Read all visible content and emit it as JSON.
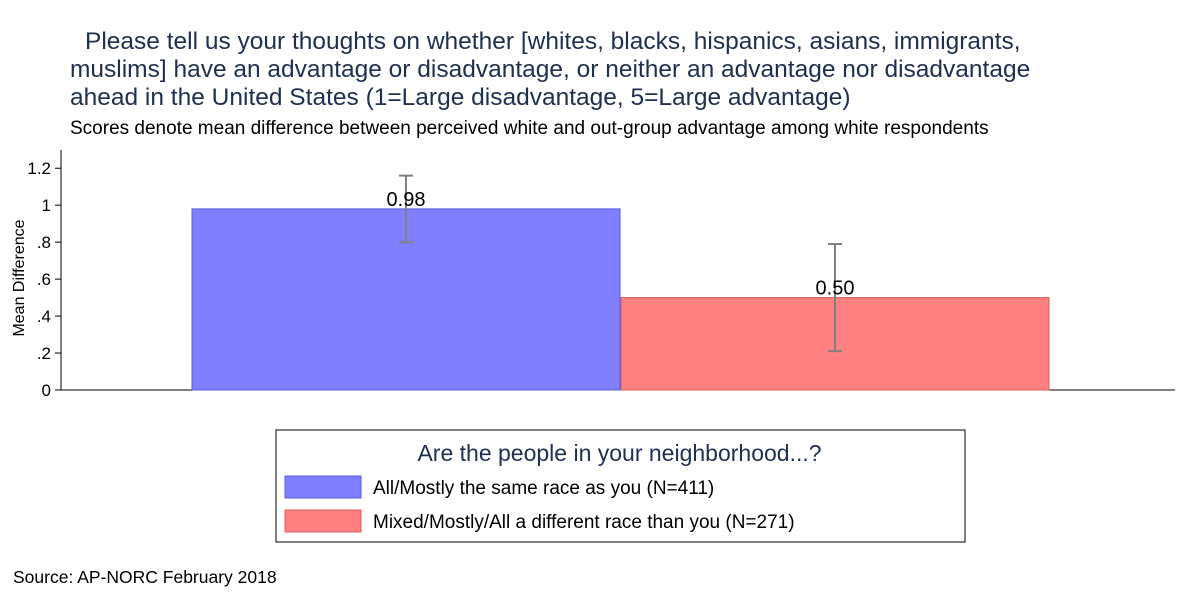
{
  "title_lines": [
    "Please tell us your thoughts on whether [whites, blacks, hispanics, asians, immigrants,",
    "muslims] have an advantage or disadvantage, or neither an advantage nor disadvantage",
    "ahead in the United States (1=Large disadvantage, 5=Large advantage)"
  ],
  "subtitle": "Scores denote mean difference between perceived white and out-group advantage among white respondents",
  "source": "Source: AP-NORC February 2018",
  "chart_data": {
    "type": "bar",
    "ylabel": "Mean Difference",
    "ylim": [
      0,
      1.25
    ],
    "yticks": [
      {
        "value": 0,
        "label": "0"
      },
      {
        "value": 0.2,
        "label": ".2"
      },
      {
        "value": 0.4,
        "label": ".4"
      },
      {
        "value": 0.6,
        "label": ".6"
      },
      {
        "value": 0.8,
        "label": ".8"
      },
      {
        "value": 1,
        "label": "1"
      },
      {
        "value": 1.2,
        "label": "1.2"
      }
    ],
    "grid": false,
    "series": [
      {
        "name": "All/Mostly the same race as you (N=411)",
        "value": 0.98,
        "label": "0.98",
        "ci": [
          0.8,
          1.16
        ],
        "color": "#8080ff",
        "edge": "#5a5ae0"
      },
      {
        "name": "Mixed/Mostly/All a different race than you (N=271)",
        "value": 0.5,
        "label": "0.50",
        "ci": [
          0.21,
          0.79
        ],
        "color": "#ff8080",
        "edge": "#e05a5a"
      }
    ],
    "legend": {
      "title": "Are the people in your neighborhood...?",
      "placement": "bottom-center"
    },
    "errorbar_color": "#808080"
  }
}
